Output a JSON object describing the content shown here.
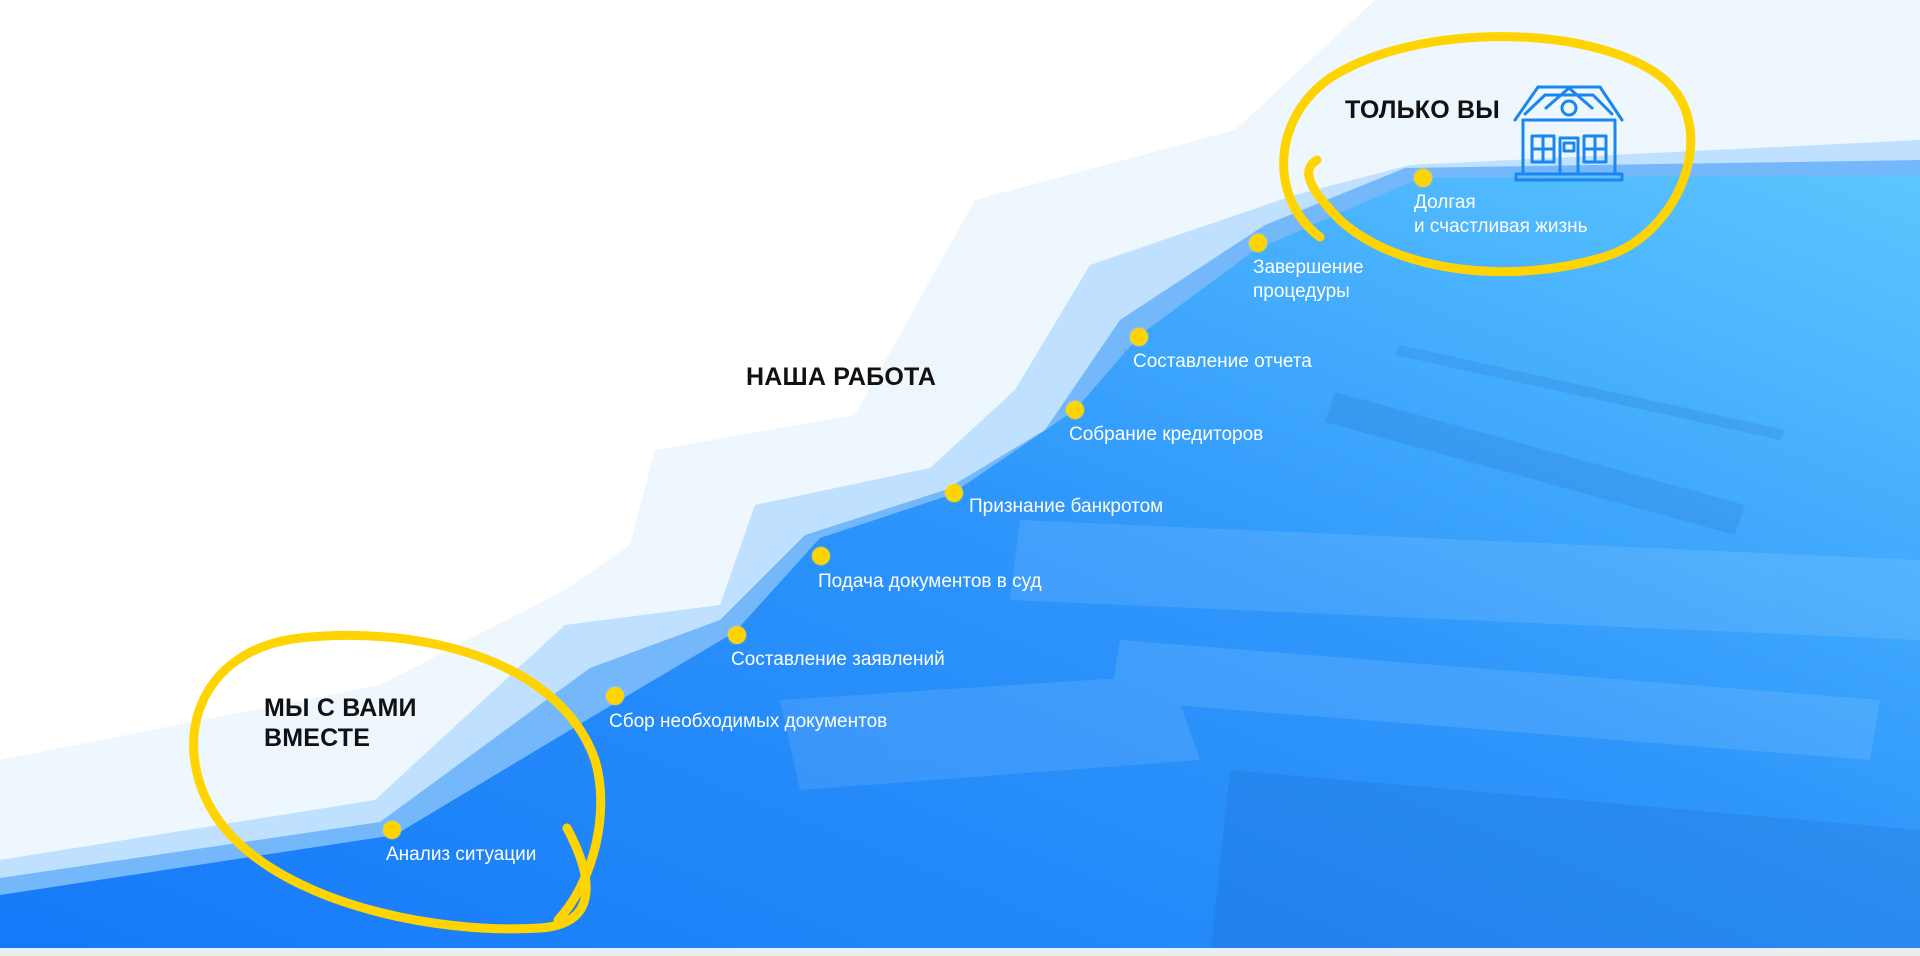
{
  "headings": {
    "start": [
      "МЫ С ВАМИ",
      "ВМЕСТЕ"
    ],
    "middle": "НАША РАБОТА",
    "end": "ТОЛЬКО ВЫ"
  },
  "steps": [
    {
      "lines": [
        "Анализ ситуации"
      ]
    },
    {
      "lines": [
        "Сбор необходимых документов"
      ]
    },
    {
      "lines": [
        "Составление заявлений"
      ]
    },
    {
      "lines": [
        "Подача документов в суд"
      ]
    },
    {
      "lines": [
        "Признание банкротом"
      ]
    },
    {
      "lines": [
        "Собрание кредиторов"
      ]
    },
    {
      "lines": [
        "Составление отчета"
      ]
    },
    {
      "lines": [
        "Завершение",
        "процедуры"
      ]
    },
    {
      "lines": [
        "Долгая",
        "и счастливая жизнь"
      ]
    }
  ],
  "icons": {
    "house": "house-icon"
  },
  "colors": {
    "accent": "#ffd400",
    "blue_dark": "#1e88ff",
    "blue_mid": "#6fb6ff",
    "blue_light": "#bfe0ff",
    "blue_pale": "#eef6fe",
    "heading": "#111111",
    "label": "#ffffff"
  }
}
